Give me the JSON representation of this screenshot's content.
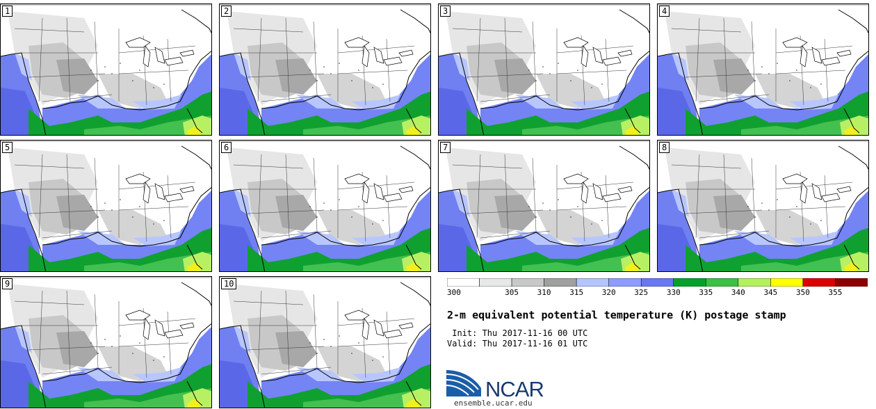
{
  "panels": [
    {
      "label": "1"
    },
    {
      "label": "2"
    },
    {
      "label": "3"
    },
    {
      "label": "4"
    },
    {
      "label": "5"
    },
    {
      "label": "6"
    },
    {
      "label": "7"
    },
    {
      "label": "8"
    },
    {
      "label": "9"
    },
    {
      "label": "10"
    }
  ],
  "colorbar": {
    "ticks": [
      "300",
      "305",
      "310",
      "315",
      "320",
      "325",
      "330",
      "335",
      "340",
      "345",
      "350",
      "355"
    ],
    "colors": [
      "#ffffff",
      "#e8e8e8",
      "#c8c8c8",
      "#a0a0a0",
      "#b4c4ff",
      "#8c9cff",
      "#6a78f0",
      "#07a02a",
      "#3cc046",
      "#b4f060",
      "#ffff00",
      "#dc0000",
      "#8c0000"
    ]
  },
  "title": "2-m equivalent potential temperature (K) postage stamp",
  "init_line": " Init: Thu 2017-11-16 00 UTC",
  "valid_line": "Valid: Thu 2017-11-16 01 UTC",
  "logo_text": "NCAR",
  "url": "ensemble.ucar.edu"
}
